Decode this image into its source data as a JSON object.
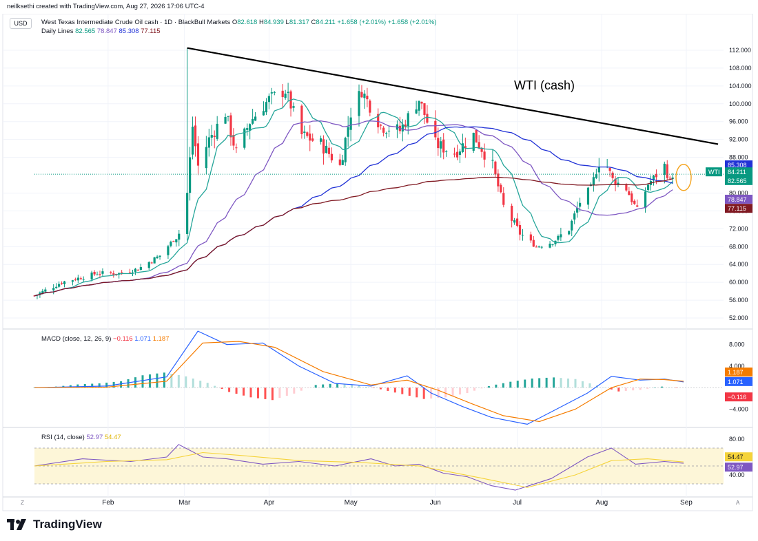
{
  "header": {
    "credit": "neilksethi created with TradingView.com, Aug 27, 2026 17:06 UTC-4"
  },
  "currency_button": "USD",
  "instrument": {
    "title": "West Texas Intermediate Crude Oil cash · 1D · BlackBull Markets",
    "o_label": "O",
    "o": "82.618",
    "h_label": "H",
    "h": "84.939",
    "l_label": "L",
    "l": "81.317",
    "c_label": "C",
    "c": "84.211",
    "change1": "+1.658 (+2.01%)",
    "change2": "+1.658 (+2.01%)"
  },
  "daily_lines": {
    "label": "Daily Lines",
    "values": [
      "82.565",
      "78.847",
      "85.308",
      "77.115"
    ],
    "colors": [
      "#089981",
      "#7e57c2",
      "#2132d6",
      "#801922"
    ]
  },
  "annotation": "WTI (cash)",
  "price_axis": {
    "ticks": [
      "112.000",
      "108.000",
      "104.000",
      "100.000",
      "96.000",
      "92.000",
      "88.000",
      "80.000",
      "76.000",
      "72.000",
      "68.000",
      "64.000",
      "60.000",
      "56.000",
      "52.000"
    ],
    "labels": [
      {
        "text": "85.308",
        "color": "#2132d6"
      },
      {
        "text": "84.211",
        "color": "#089981"
      },
      {
        "text": "82.565",
        "color": "#089981"
      },
      {
        "text": "78.847",
        "color": "#7e57c2"
      },
      {
        "text": "77.115",
        "color": "#801922"
      }
    ],
    "symbol_tag": "WTI"
  },
  "macd": {
    "label": "MACD (close, 12, 26, 9)",
    "hist": "−0.116",
    "macd": "1.071",
    "signal": "1.187",
    "ticks": [
      "8.000",
      "4.000",
      "−4.000"
    ],
    "labels": [
      {
        "text": "1.187",
        "color": "#f57c00"
      },
      {
        "text": "1.071",
        "color": "#2962ff"
      },
      {
        "text": "−0.116",
        "color": "#f23645"
      }
    ]
  },
  "rsi": {
    "label": "RSI (14, close)",
    "rsi": "52.97",
    "ma": "54.47",
    "ticks": [
      "80.00",
      "40.00"
    ],
    "labels": [
      {
        "text": "54.47",
        "color": "#f5d33a"
      },
      {
        "text": "52.97",
        "color": "#7e57c2"
      }
    ]
  },
  "time_axis": {
    "months": [
      "Feb",
      "Mar",
      "Apr",
      "May",
      "Jun",
      "Jul",
      "Aug",
      "Sep"
    ],
    "left_button": "Z",
    "right_button": "A"
  },
  "brand": "TradingView",
  "chart_data": [
    {
      "type": "candlestick",
      "title": "West Texas Intermediate Crude Oil cash · 1D · BlackBull Markets",
      "x_range": [
        "2026-01-05",
        "2026-08-27"
      ],
      "ylim": [
        50,
        114
      ],
      "price_points": [
        {
          "date": "2026-01-05",
          "close": 57
        },
        {
          "date": "2026-01-15",
          "close": 60
        },
        {
          "date": "2026-01-28",
          "close": 62
        },
        {
          "date": "2026-02-05",
          "close": 62
        },
        {
          "date": "2026-02-12",
          "close": 63
        },
        {
          "date": "2026-02-20",
          "close": 66
        },
        {
          "date": "2026-02-27",
          "close": 71
        },
        {
          "date": "2026-03-02",
          "close": 80
        },
        {
          "date": "2026-03-04",
          "close": 95
        },
        {
          "date": "2026-03-06",
          "close": 86
        },
        {
          "date": "2026-03-10",
          "close": 92
        },
        {
          "date": "2026-03-16",
          "close": 98
        },
        {
          "date": "2026-03-20",
          "close": 89
        },
        {
          "date": "2026-03-25",
          "close": 96
        },
        {
          "date": "2026-04-01",
          "close": 101
        },
        {
          "date": "2026-04-07",
          "close": 103
        },
        {
          "date": "2026-04-13",
          "close": 93
        },
        {
          "date": "2026-04-20",
          "close": 91
        },
        {
          "date": "2026-04-27",
          "close": 86
        },
        {
          "date": "2026-05-01",
          "close": 98
        },
        {
          "date": "2026-05-05",
          "close": 103
        },
        {
          "date": "2026-05-12",
          "close": 95
        },
        {
          "date": "2026-05-19",
          "close": 94
        },
        {
          "date": "2026-05-26",
          "close": 101
        },
        {
          "date": "2026-06-01",
          "close": 91
        },
        {
          "date": "2026-06-08",
          "close": 89
        },
        {
          "date": "2026-06-15",
          "close": 93
        },
        {
          "date": "2026-06-22",
          "close": 86
        },
        {
          "date": "2026-06-26",
          "close": 77
        },
        {
          "date": "2026-07-02",
          "close": 71
        },
        {
          "date": "2026-07-08",
          "close": 68
        },
        {
          "date": "2026-07-14",
          "close": 69
        },
        {
          "date": "2026-07-20",
          "close": 72
        },
        {
          "date": "2026-07-24",
          "close": 78
        },
        {
          "date": "2026-07-28",
          "close": 81
        },
        {
          "date": "2026-08-01",
          "close": 89
        },
        {
          "date": "2026-08-05",
          "close": 83
        },
        {
          "date": "2026-08-10",
          "close": 81
        },
        {
          "date": "2026-08-14",
          "close": 76
        },
        {
          "date": "2026-08-18",
          "close": 82
        },
        {
          "date": "2026-08-21",
          "close": 84
        },
        {
          "date": "2026-08-24",
          "close": 86
        },
        {
          "date": "2026-08-26",
          "close": 82.6
        },
        {
          "date": "2026-08-27",
          "close": 84.2
        }
      ],
      "moving_averages": [
        {
          "name": "",
          "color": "#26a69a",
          "last": 82.565
        },
        {
          "name": "",
          "color": "#7e57c2",
          "last": 78.847
        },
        {
          "name": "",
          "color": "#2132d6",
          "last": 85.308
        },
        {
          "name": "",
          "color": "#801922",
          "last": 77.115
        }
      ],
      "trendline": {
        "from": {
          "date": "2026-03-02",
          "price": 112.5
        },
        "to": {
          "date": "2026-08-31",
          "price": 92.5
        }
      }
    },
    {
      "type": "line",
      "title": "MACD (close, 12, 26, 9)",
      "ylim": [
        -7,
        10
      ],
      "series": [
        {
          "name": "MACD",
          "color": "#2962ff",
          "points": [
            [
              0,
              0
            ],
            [
              30,
              0.3
            ],
            [
              55,
              2
            ],
            [
              68,
              10.5
            ],
            [
              80,
              8
            ],
            [
              95,
              8.3
            ],
            [
              110,
              4
            ],
            [
              125,
              0.8
            ],
            [
              140,
              0.3
            ],
            [
              155,
              2.2
            ],
            [
              165,
              -1
            ],
            [
              178,
              -3.5
            ],
            [
              190,
              -5.5
            ],
            [
              205,
              -6.8
            ],
            [
              215,
              -4.5
            ],
            [
              230,
              -1
            ],
            [
              240,
              2.1
            ],
            [
              252,
              1.4
            ],
            [
              262,
              1.6
            ],
            [
              270,
              1.07
            ]
          ]
        },
        {
          "name": "Signal",
          "color": "#f57c00",
          "points": [
            [
              0,
              0
            ],
            [
              30,
              0.1
            ],
            [
              55,
              1.2
            ],
            [
              70,
              8.3
            ],
            [
              85,
              8.6
            ],
            [
              100,
              7.5
            ],
            [
              120,
              3
            ],
            [
              140,
              0.5
            ],
            [
              155,
              1.4
            ],
            [
              168,
              -0.5
            ],
            [
              182,
              -3
            ],
            [
              195,
              -5.2
            ],
            [
              210,
              -6.3
            ],
            [
              225,
              -4
            ],
            [
              240,
              0
            ],
            [
              252,
              1.6
            ],
            [
              262,
              1.5
            ],
            [
              270,
              1.187
            ]
          ]
        }
      ],
      "histogram": [
        0,
        0.2,
        0.6,
        0.8,
        1.2,
        2.3,
        2.8,
        2.1,
        0.9,
        -0.8,
        -1.8,
        -2.3,
        -1.1,
        0.5,
        0.8,
        0.4,
        -0.3,
        -1.2,
        -2.1,
        -1.8,
        -1,
        0.3,
        1.1,
        1.7,
        1.9,
        1.6,
        0.4,
        -0.7,
        -0.4,
        0.2,
        -0.116
      ]
    },
    {
      "type": "line",
      "title": "RSI (14, close)",
      "ylim": [
        20,
        90
      ],
      "series": [
        {
          "name": "RSI",
          "color": "#7e57c2",
          "points": [
            [
              0,
              50
            ],
            [
              20,
              58
            ],
            [
              40,
              55
            ],
            [
              55,
              60
            ],
            [
              60,
              74
            ],
            [
              70,
              60
            ],
            [
              80,
              58
            ],
            [
              95,
              52
            ],
            [
              110,
              55
            ],
            [
              125,
              50
            ],
            [
              140,
              58
            ],
            [
              150,
              50
            ],
            [
              160,
              52
            ],
            [
              170,
              42
            ],
            [
              180,
              38
            ],
            [
              190,
              28
            ],
            [
              200,
              23
            ],
            [
              215,
              36
            ],
            [
              230,
              60
            ],
            [
              240,
              70
            ],
            [
              250,
              52
            ],
            [
              262,
              55
            ],
            [
              270,
              52.97
            ]
          ]
        },
        {
          "name": "MA",
          "color": "#f5d33a",
          "points": [
            [
              0,
              50
            ],
            [
              30,
              55
            ],
            [
              55,
              57
            ],
            [
              70,
              65
            ],
            [
              85,
              62
            ],
            [
              110,
              56
            ],
            [
              135,
              54
            ],
            [
              160,
              50
            ],
            [
              185,
              37
            ],
            [
              205,
              26
            ],
            [
              225,
              40
            ],
            [
              240,
              56
            ],
            [
              255,
              58
            ],
            [
              270,
              54.47
            ]
          ]
        }
      ],
      "levels": [
        70,
        30
      ]
    }
  ]
}
